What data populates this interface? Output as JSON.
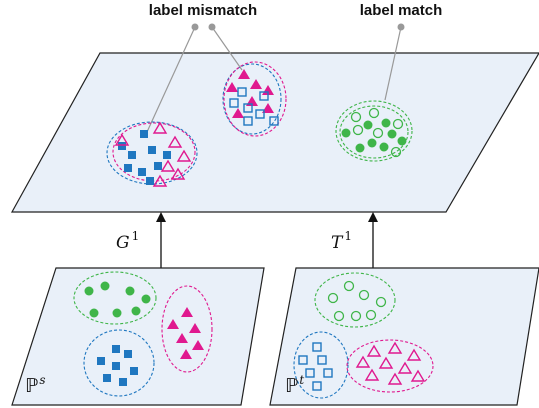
{
  "labels": {
    "mismatch": "label mismatch",
    "match": "label match"
  },
  "arrows": {
    "source_map": "G",
    "source_map_sup": "1",
    "target_map": "T",
    "target_map_sup": "1"
  },
  "domains": {
    "source": "ℙ",
    "source_sup": "s",
    "target": "ℙ",
    "target_sup": "t"
  },
  "colors": {
    "plane_fill": "#e9f0f9",
    "plane_stroke": "#222222",
    "green": "#3fb549",
    "blue": "#1f77c0",
    "magenta": "#e0198f",
    "pointer_line": "#999999"
  },
  "legend_shapes": {
    "green": "filled-circle / open-circle",
    "blue": "filled-square / open-square",
    "magenta": "filled-triangle / open-triangle"
  }
}
